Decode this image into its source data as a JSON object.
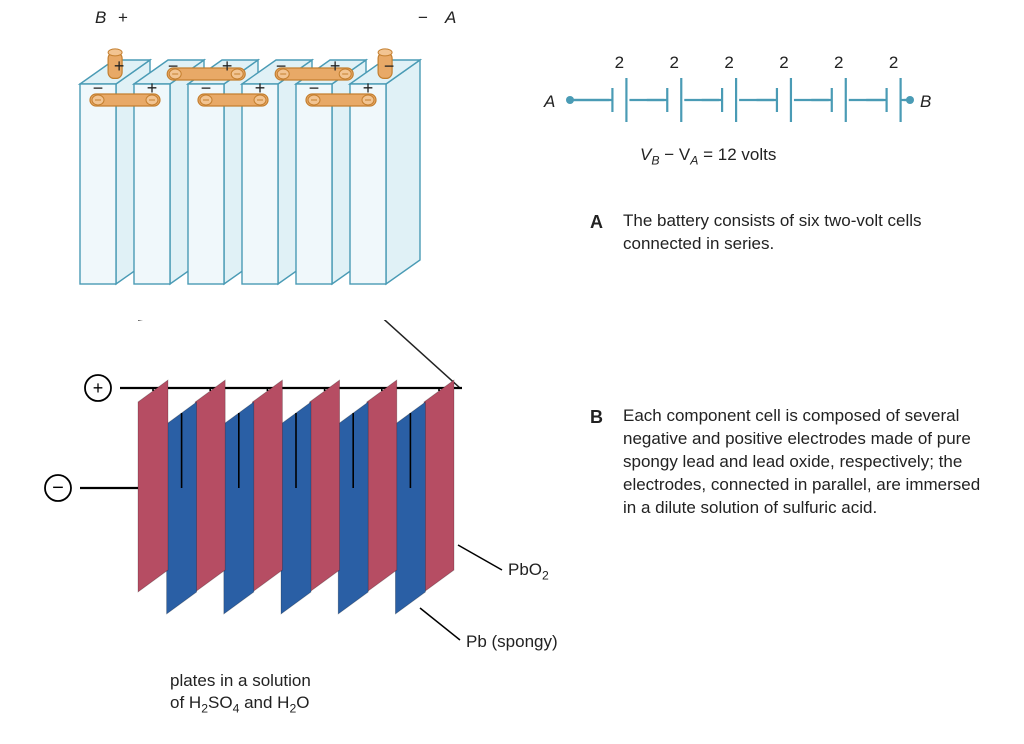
{
  "topLabels": {
    "B": "B",
    "plusB": "+",
    "minusA": "−",
    "A": "A"
  },
  "cellSigns": {
    "plus": "+",
    "minus": "−"
  },
  "battery": {
    "cells": 6,
    "fillLight": "#e0f1f6",
    "fillLighter": "#f0f8fb",
    "stroke": "#4a9bb5",
    "connectorFill": "#e8a967",
    "connectorStroke": "#c47f2f",
    "terminalFill": "#e8a967"
  },
  "circuit": {
    "A": "A",
    "B": "B",
    "voltLabel": "2",
    "numCells": 6,
    "color": "#4a9bb5",
    "equationPrefix": "V",
    "equationB": "B",
    "equationMid": " − V",
    "equationA": "A",
    "equationSuffix": " = 12 volts"
  },
  "captionA": {
    "letter": "A",
    "text": "The battery consists of six two-volt cells connected in series."
  },
  "captionB": {
    "letter": "B",
    "text": "Each component cell is composed of several negative and positive electrodes made of pure spongy lead and lead oxide, respectively; the electrodes, connected in parallel, are immersed in a dilute solution of sulfuric acid."
  },
  "detail": {
    "plusSign": "+",
    "minusSign": "−",
    "redFill": "#b64d63",
    "blueFill": "#2a5fa5",
    "pbo2": "PbO",
    "pbo2sub": "2",
    "pb": "Pb (spongy)",
    "solutionLine1": "plates in a solution",
    "solutionLine2a": "of H",
    "solutionLine2b": "2",
    "solutionLine2c": "SO",
    "solutionLine2d": "4",
    "solutionLine2e": " and H",
    "solutionLine2f": "2",
    "solutionLine2g": "O"
  }
}
